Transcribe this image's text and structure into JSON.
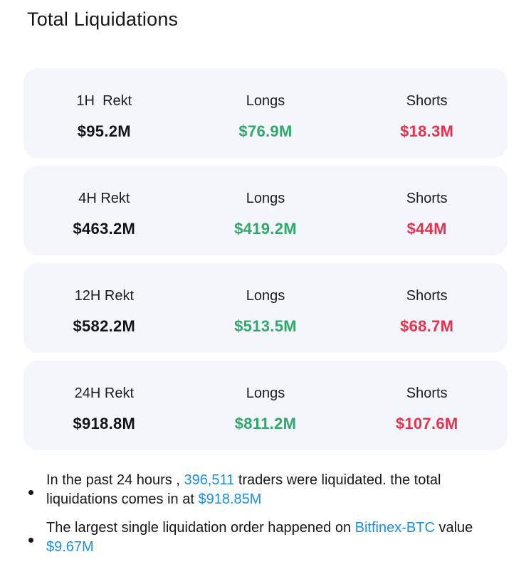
{
  "header": {
    "title": "Total Liquidations"
  },
  "colors": {
    "long": "#2fa86a",
    "short": "#e4334f",
    "highlight": "#1a8fe0",
    "card_bg": "#f4f6fb"
  },
  "cards": [
    {
      "period_label": "1H  Rekt",
      "total": "$95.2M",
      "longs_label": "Longs",
      "longs": "$76.9M",
      "shorts_label": "Shorts",
      "shorts": "$18.3M"
    },
    {
      "period_label": "4H Rekt",
      "total": "$463.2M",
      "longs_label": "Longs",
      "longs": "$419.2M",
      "shorts_label": "Shorts",
      "shorts": "$44M"
    },
    {
      "period_label": "12H Rekt",
      "total": "$582.2M",
      "longs_label": "Longs",
      "longs": "$513.5M",
      "shorts_label": "Shorts",
      "shorts": "$68.7M"
    },
    {
      "period_label": "24H Rekt",
      "total": "$918.8M",
      "longs_label": "Longs",
      "longs": "$811.2M",
      "shorts_label": "Shorts",
      "shorts": "$107.6M"
    }
  ],
  "notes": {
    "traders": {
      "prefix": "In the past 24 hours , ",
      "count": "396,511",
      "middle": " traders were liquidated. the total liquidations comes in at ",
      "total": "$918.85M"
    },
    "largest": {
      "prefix": "The largest single liquidation order happened on ",
      "exchange": "Bitfinex-BTC",
      "middle": " value ",
      "value": "$9.67M"
    }
  }
}
